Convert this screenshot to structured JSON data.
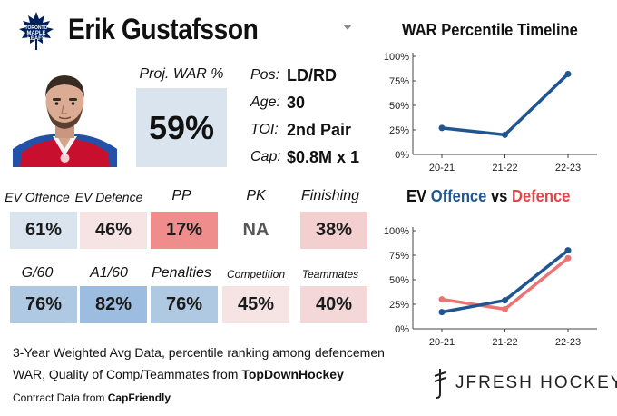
{
  "header": {
    "player_name": "Erik Gustafsson",
    "team_logo_text": [
      "TORONTO",
      "MAPLE",
      "LEAFS"
    ],
    "dropdown_icon": "chevron-down-icon"
  },
  "proj_war": {
    "label": "Proj. WAR %",
    "value": "59%"
  },
  "info": [
    {
      "label": "Pos:",
      "value": "LD/RD"
    },
    {
      "label": "Age:",
      "value": "30"
    },
    {
      "label": "TOI:",
      "value": "2nd Pair"
    },
    {
      "label": "Cap:",
      "value": "$0.8M x 1"
    }
  ],
  "metrics": [
    {
      "label": "EV Offence",
      "value": "61%",
      "color": "#d9e4ef"
    },
    {
      "label": "EV Defence",
      "value": "46%",
      "color": "#f6e4e4"
    },
    {
      "label": "PP",
      "value": "17%",
      "color": "#ef8d8d"
    },
    {
      "label": "PK",
      "value": "NA",
      "color": "#ffffff"
    },
    {
      "label": "Finishing",
      "value": "38%",
      "color": "#f4cfcf"
    },
    {
      "label": "G/60",
      "value": "76%",
      "color": "#b0c9e3"
    },
    {
      "label": "A1/60",
      "value": "82%",
      "color": "#9dbde0"
    },
    {
      "label": "Penalties",
      "value": "76%",
      "color": "#b0c9e3"
    },
    {
      "label": "Competition",
      "value": "45%",
      "color": "#f6e4e4"
    },
    {
      "label": "Teammates",
      "value": "40%",
      "color": "#f4d8d8"
    }
  ],
  "footer": {
    "line1": "3-Year Weighted Avg Data, percentile ranking among defencemen",
    "line2_prefix": "WAR, Quality of Comp/Teammates from ",
    "line2_source": "TopDownHockey",
    "line3_prefix": "Contract Data from ",
    "line3_source": "CapFriendly"
  },
  "brand": {
    "text": "JFRESH HOCKEY"
  },
  "chart_data": [
    {
      "type": "line",
      "title": "WAR Percentile Timeline",
      "categories": [
        "20-21",
        "21-22",
        "22-23"
      ],
      "yticks": [
        "100%",
        "75%",
        "50%",
        "25%",
        "0%"
      ],
      "ylim": [
        0,
        100
      ],
      "series": [
        {
          "values": [
            27,
            20,
            82
          ],
          "color": "#1f5591"
        }
      ]
    },
    {
      "type": "line",
      "title_parts": [
        "EV ",
        "Offence",
        " vs ",
        "Defence"
      ],
      "title_colors": [
        "#111111",
        "#1f5591",
        "#111111",
        "#e0474c"
      ],
      "categories": [
        "20-21",
        "21-22",
        "22-23"
      ],
      "yticks": [
        "100%",
        "75%",
        "50%",
        "25%",
        "0%"
      ],
      "ylim": [
        0,
        100
      ],
      "series": [
        {
          "values": [
            17,
            29,
            80
          ],
          "color": "#1f5591"
        },
        {
          "values": [
            30,
            20,
            72
          ],
          "color": "#ec7373"
        }
      ]
    }
  ]
}
